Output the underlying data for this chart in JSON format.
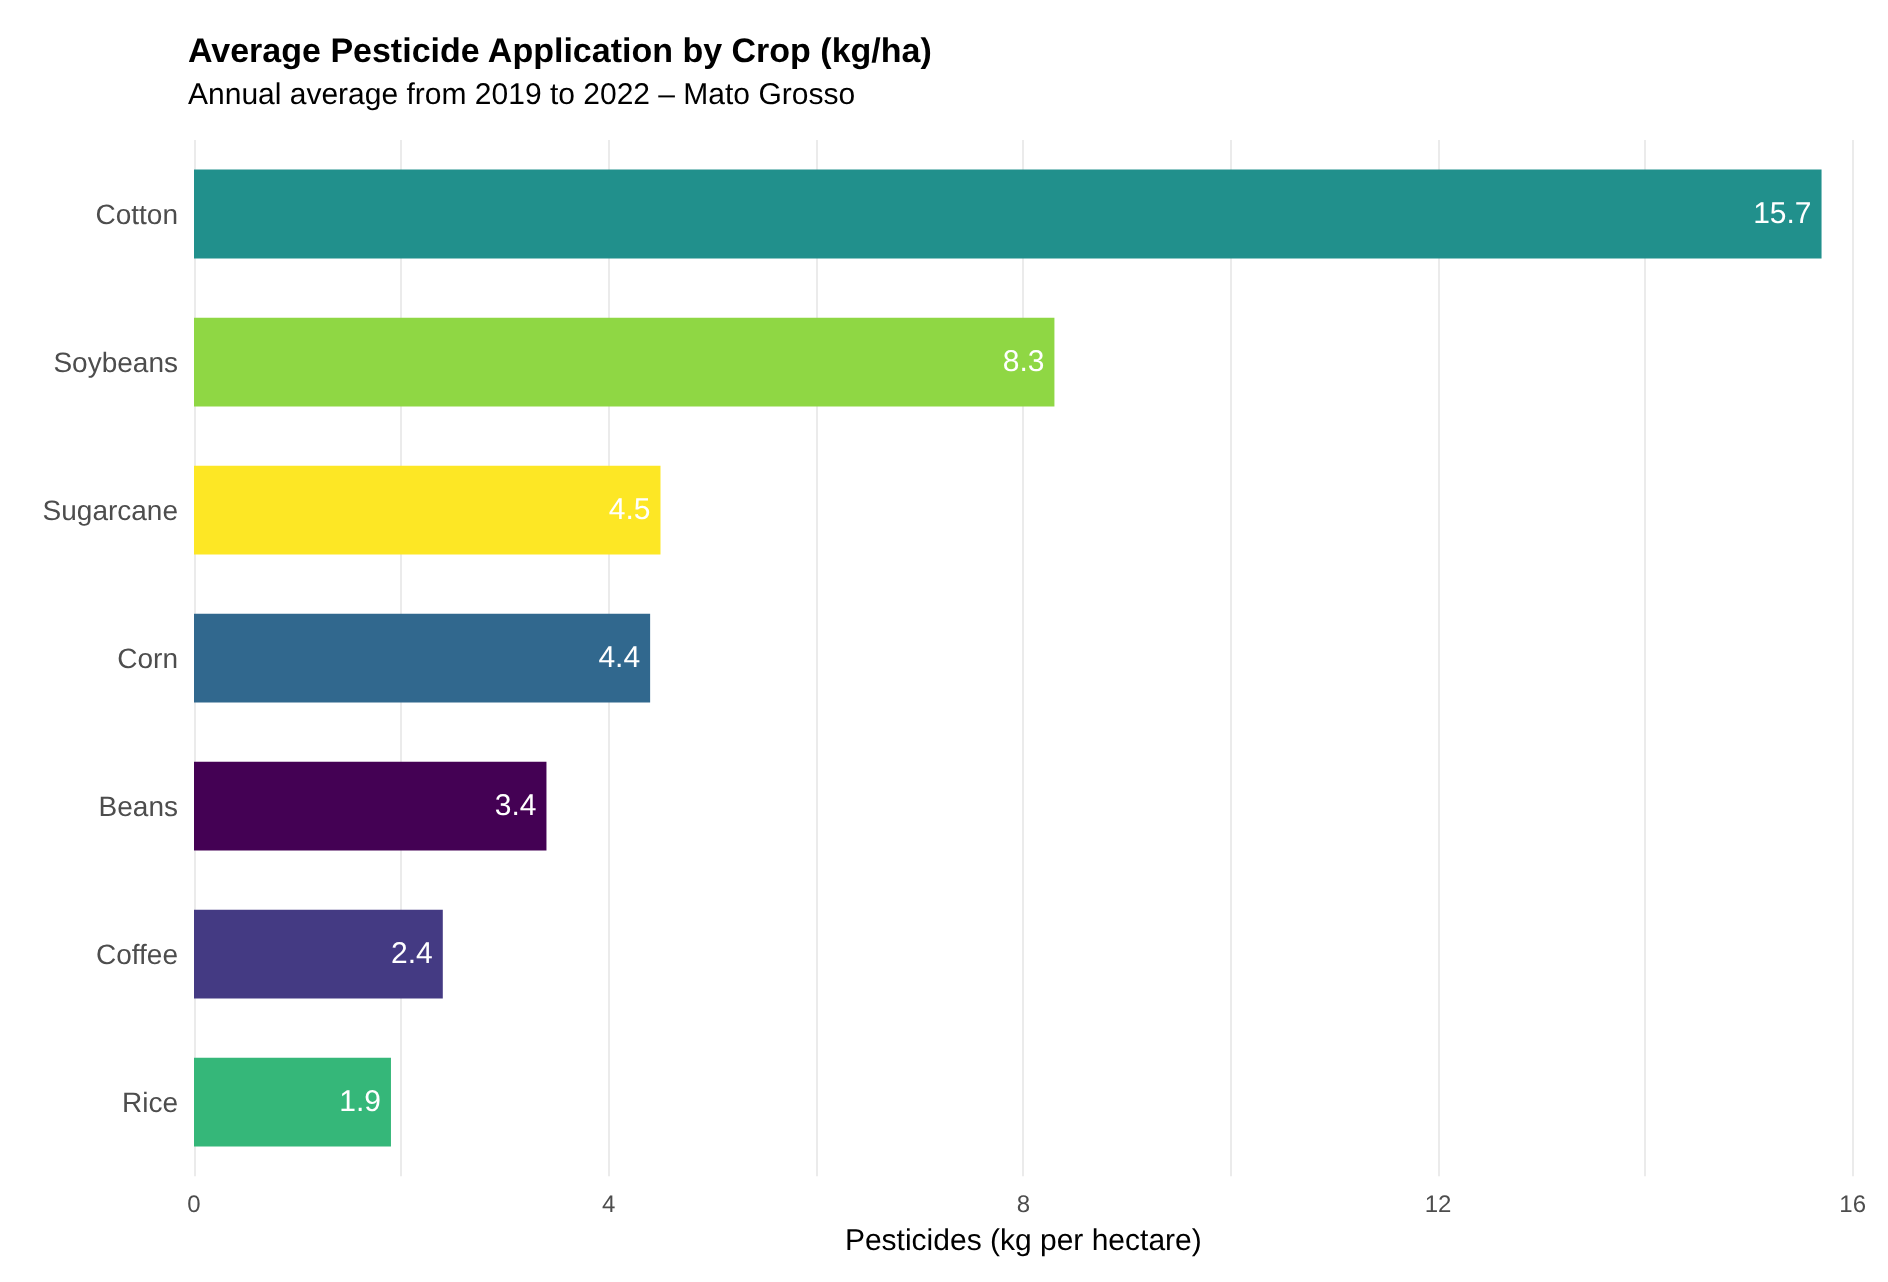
{
  "chart_data": {
    "type": "bar",
    "orientation": "horizontal",
    "title": "Average Pesticide Application by Crop (kg/ha)",
    "subtitle": "Annual average from 2019 to 2022 – Mato Grosso",
    "xlabel": "Pesticides (kg per hectare)",
    "categories": [
      "Cotton",
      "Soybeans",
      "Sugarcane",
      "Corn",
      "Beans",
      "Coffee",
      "Rice"
    ],
    "values": [
      15.7,
      8.3,
      4.5,
      4.4,
      3.4,
      2.4,
      1.9
    ],
    "colors": [
      "#21908c",
      "#8fd744",
      "#fde725",
      "#31688e",
      "#440154",
      "#443a83",
      "#35b779"
    ],
    "xlim": [
      0,
      16
    ],
    "xticks": [
      0,
      {
        "value": 2,
        "label": null
      },
      4,
      {
        "value": 6,
        "label": null
      },
      8,
      {
        "value": 10,
        "label": null
      },
      12,
      {
        "value": 14,
        "label": null
      },
      16
    ],
    "grid": "x",
    "data_labels": true
  }
}
